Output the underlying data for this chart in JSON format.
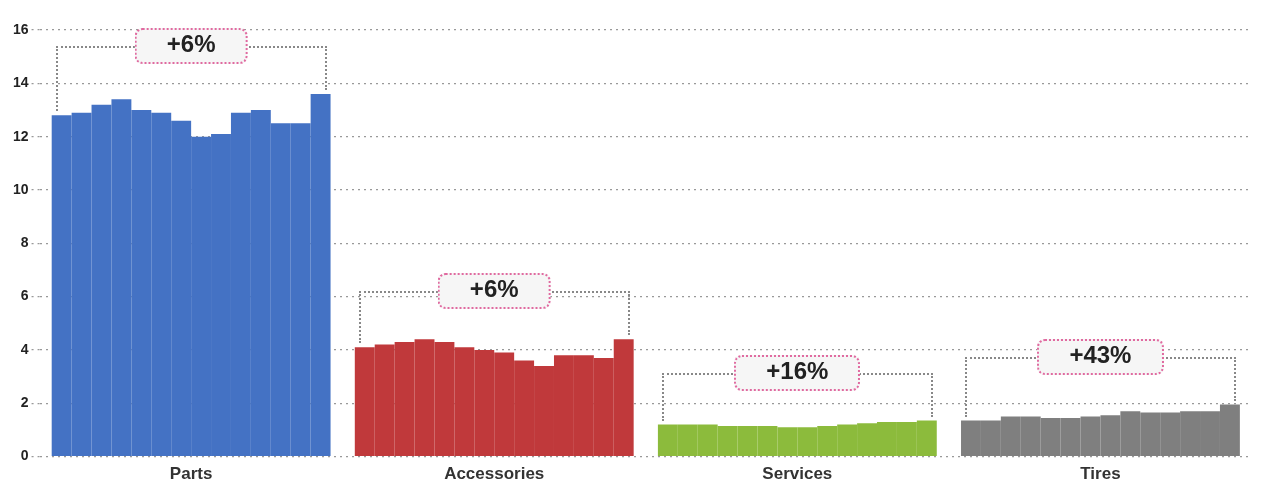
{
  "chart_data": {
    "type": "bar",
    "categories": [
      "Parts",
      "Accessories",
      "Services",
      "Tires"
    ],
    "series": [
      {
        "colors": [
          "#4472c4",
          "#c0393b",
          "#8cbb3c",
          "#7f7f7f"
        ],
        "values": [
          12.8,
          4.1,
          1.2,
          1.35
        ]
      },
      {
        "colors": [
          "#4472c4",
          "#c0393b",
          "#8cbb3c",
          "#7f7f7f"
        ],
        "values": [
          12.9,
          4.2,
          1.2,
          1.35
        ]
      },
      {
        "colors": [
          "#4472c4",
          "#c0393b",
          "#8cbb3c",
          "#7f7f7f"
        ],
        "values": [
          13.2,
          4.3,
          1.2,
          1.5
        ]
      },
      {
        "colors": [
          "#4472c4",
          "#c0393b",
          "#8cbb3c",
          "#7f7f7f"
        ],
        "values": [
          13.4,
          4.4,
          1.15,
          1.5
        ]
      },
      {
        "colors": [
          "#4472c4",
          "#c0393b",
          "#8cbb3c",
          "#7f7f7f"
        ],
        "values": [
          13.0,
          4.3,
          1.15,
          1.45
        ]
      },
      {
        "colors": [
          "#4472c4",
          "#c0393b",
          "#8cbb3c",
          "#7f7f7f"
        ],
        "values": [
          12.9,
          4.1,
          1.15,
          1.45
        ]
      },
      {
        "colors": [
          "#4472c4",
          "#c0393b",
          "#8cbb3c",
          "#7f7f7f"
        ],
        "values": [
          12.6,
          4.0,
          1.1,
          1.5
        ]
      },
      {
        "colors": [
          "#4472c4",
          "#c0393b",
          "#8cbb3c",
          "#7f7f7f"
        ],
        "values": [
          12.0,
          3.9,
          1.1,
          1.55
        ]
      },
      {
        "colors": [
          "#4472c4",
          "#c0393b",
          "#8cbb3c",
          "#7f7f7f"
        ],
        "values": [
          12.1,
          3.6,
          1.15,
          1.7
        ]
      },
      {
        "colors": [
          "#4472c4",
          "#c0393b",
          "#8cbb3c",
          "#7f7f7f"
        ],
        "values": [
          12.9,
          3.4,
          1.2,
          1.65
        ]
      },
      {
        "colors": [
          "#4472c4",
          "#c0393b",
          "#8cbb3c",
          "#7f7f7f"
        ],
        "values": [
          13.0,
          3.8,
          1.25,
          1.65
        ]
      },
      {
        "colors": [
          "#4472c4",
          "#c0393b",
          "#8cbb3c",
          "#7f7f7f"
        ],
        "values": [
          12.5,
          3.8,
          1.3,
          1.7
        ]
      },
      {
        "colors": [
          "#4472c4",
          "#c0393b",
          "#8cbb3c",
          "#7f7f7f"
        ],
        "values": [
          12.5,
          3.7,
          1.3,
          1.7
        ]
      },
      {
        "colors": [
          "#4472c4",
          "#c0393b",
          "#8cbb3c",
          "#7f7f7f"
        ],
        "values": [
          13.6,
          4.4,
          1.35,
          1.95
        ]
      }
    ],
    "ylim": [
      0,
      16
    ],
    "yticks": [
      0,
      2,
      4,
      6,
      8,
      10,
      12,
      14,
      16
    ],
    "grid": "y",
    "legend": false,
    "annotations": [
      "+6%",
      "+6%",
      "+16%",
      "+43%"
    ]
  }
}
